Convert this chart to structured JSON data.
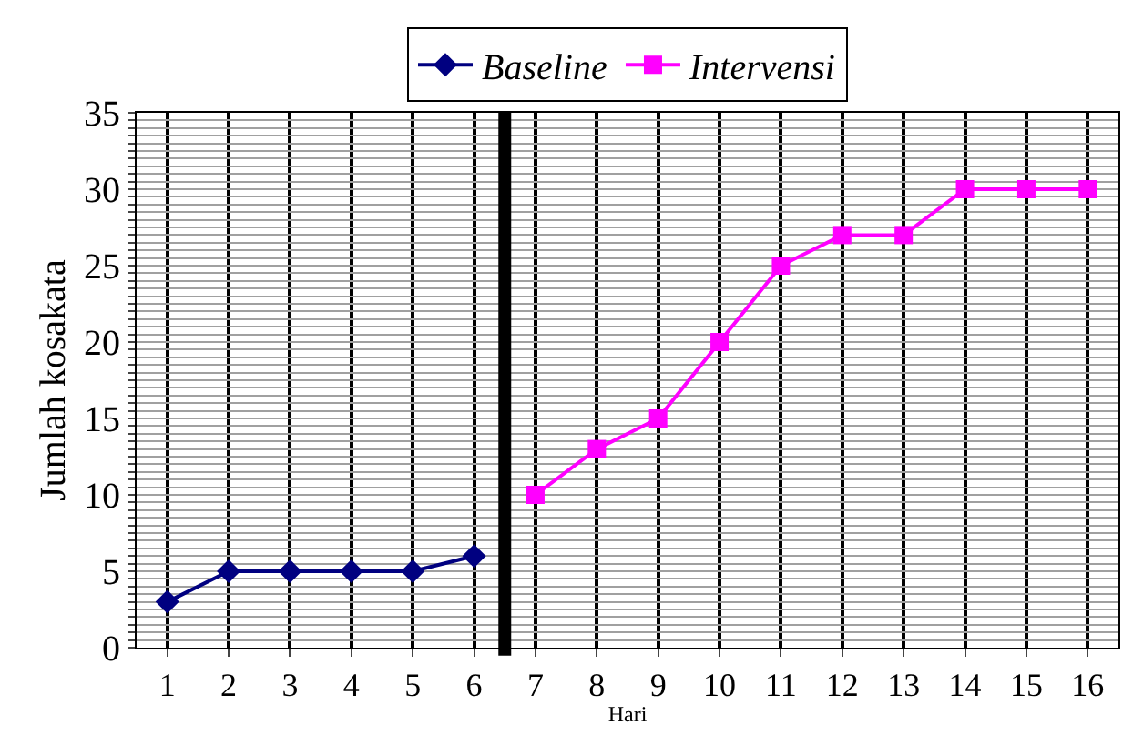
{
  "chart_data": {
    "type": "line",
    "xlabel": "Hari",
    "ylabel": "Jumlah kosakata",
    "xlim": [
      0.5,
      16.5
    ],
    "xticks": [
      1,
      2,
      3,
      4,
      5,
      6,
      7,
      8,
      9,
      10,
      11,
      12,
      13,
      14,
      15,
      16
    ],
    "ylim": [
      0,
      35
    ],
    "yticks": [
      0,
      {
        "value": 0.5,
        "label": null
      },
      {
        "value": 1,
        "label": null
      },
      {
        "value": 1.5,
        "label": null
      },
      {
        "value": 2,
        "label": null
      },
      {
        "value": 2.5,
        "label": null
      },
      {
        "value": 3,
        "label": null
      },
      {
        "value": 3.5,
        "label": null
      },
      {
        "value": 4,
        "label": null
      },
      {
        "value": 4.5,
        "label": null
      },
      5,
      {
        "value": 5.5,
        "label": null
      },
      {
        "value": 6,
        "label": null
      },
      {
        "value": 6.5,
        "label": null
      },
      {
        "value": 7,
        "label": null
      },
      {
        "value": 7.5,
        "label": null
      },
      {
        "value": 8,
        "label": null
      },
      {
        "value": 8.5,
        "label": null
      },
      {
        "value": 9,
        "label": null
      },
      {
        "value": 9.5,
        "label": null
      },
      10,
      {
        "value": 10.5,
        "label": null
      },
      {
        "value": 11,
        "label": null
      },
      {
        "value": 11.5,
        "label": null
      },
      {
        "value": 12,
        "label": null
      },
      {
        "value": 12.5,
        "label": null
      },
      {
        "value": 13,
        "label": null
      },
      {
        "value": 13.5,
        "label": null
      },
      {
        "value": 14,
        "label": null
      },
      {
        "value": 14.5,
        "label": null
      },
      15,
      {
        "value": 15.5,
        "label": null
      },
      {
        "value": 16,
        "label": null
      },
      {
        "value": 16.5,
        "label": null
      },
      {
        "value": 17,
        "label": null
      },
      {
        "value": 17.5,
        "label": null
      },
      {
        "value": 18,
        "label": null
      },
      {
        "value": 18.5,
        "label": null
      },
      {
        "value": 19,
        "label": null
      },
      {
        "value": 19.5,
        "label": null
      },
      20,
      {
        "value": 20.5,
        "label": null
      },
      {
        "value": 21,
        "label": null
      },
      {
        "value": 21.5,
        "label": null
      },
      {
        "value": 22,
        "label": null
      },
      {
        "value": 22.5,
        "label": null
      },
      {
        "value": 23,
        "label": null
      },
      {
        "value": 23.5,
        "label": null
      },
      {
        "value": 24,
        "label": null
      },
      {
        "value": 24.5,
        "label": null
      },
      25,
      {
        "value": 25.5,
        "label": null
      },
      {
        "value": 26,
        "label": null
      },
      {
        "value": 26.5,
        "label": null
      },
      {
        "value": 27,
        "label": null
      },
      {
        "value": 27.5,
        "label": null
      },
      {
        "value": 28,
        "label": null
      },
      {
        "value": 28.5,
        "label": null
      },
      {
        "value": 29,
        "label": null
      },
      {
        "value": 29.5,
        "label": null
      },
      30,
      {
        "value": 30.5,
        "label": null
      },
      {
        "value": 31,
        "label": null
      },
      {
        "value": 31.5,
        "label": null
      },
      {
        "value": 32,
        "label": null
      },
      {
        "value": 32.5,
        "label": null
      },
      {
        "value": 33,
        "label": null
      },
      {
        "value": 33.5,
        "label": null
      },
      {
        "value": 34,
        "label": null
      },
      {
        "value": 34.5,
        "label": null
      },
      35
    ],
    "grid": true,
    "legend": "top",
    "ref_lines": [
      {
        "axis": "x",
        "value": 6.5,
        "color": "#000000",
        "line_style": "solid"
      }
    ],
    "series": [
      {
        "name": "Baseline",
        "color": "#000080",
        "marker": "diamond",
        "x": [
          1,
          2,
          3,
          4,
          5,
          6
        ],
        "values": [
          3,
          5,
          5,
          5,
          5,
          6
        ]
      },
      {
        "name": "Intervensi",
        "color": "#ff00ff",
        "marker": "square",
        "x": [
          7,
          8,
          9,
          10,
          11,
          12,
          13,
          14,
          15,
          16
        ],
        "values": [
          10,
          13,
          15,
          20,
          25,
          27,
          27,
          30,
          30,
          30
        ]
      }
    ]
  }
}
